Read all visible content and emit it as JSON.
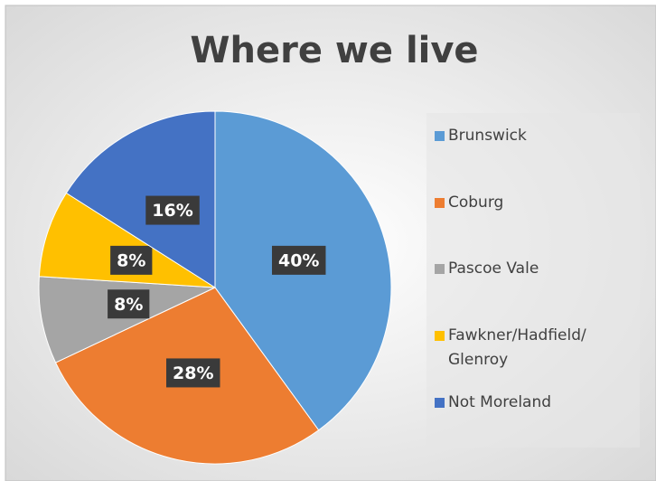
{
  "chart_data": {
    "type": "pie",
    "title": "Where we live",
    "categories": [
      "Brunswick",
      "Coburg",
      "Pascoe Vale",
      "Fawkner/Hadfield/Glenroy",
      "Not Moreland"
    ],
    "values": [
      40,
      28,
      8,
      8,
      16
    ],
    "value_labels": [
      "40%",
      "28%",
      "8%",
      "8%",
      "16%"
    ],
    "colors": [
      "#5b9bd5",
      "#ed7d31",
      "#a5a5a5",
      "#ffc000",
      "#4472c4"
    ],
    "legend": "right"
  }
}
